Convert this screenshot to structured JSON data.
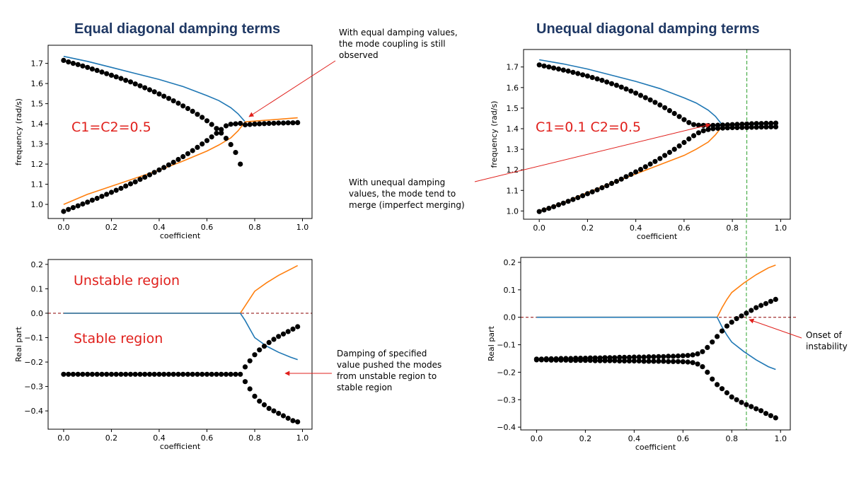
{
  "titles": {
    "left": "Equal diagonal damping terms",
    "right": "Unequal diagonal damping terms"
  },
  "annotations": {
    "equal_coupling": "With equal damping values, the mode coupling is still observed",
    "unequal_merge": "With unequal damping values, the mode tend to merge (imperfect merging)",
    "pushed": "Damping of specified value pushed the modes from unstable region to stable region",
    "onset": "Onset of instability",
    "c_equal": "C1=C2=0.5",
    "c_unequal": "C1=0.1  C2=0.5",
    "unstable": "Unstable region",
    "stable": "Stable region"
  },
  "colors": {
    "blue": "#1f77b4",
    "orange": "#ff7f0e",
    "dots": "#000000",
    "zero_line": "#8b0000",
    "onset_line": "#2ca02c",
    "arrow": "#e0201c"
  },
  "chart_data": [
    {
      "id": "freq_equal",
      "type": "line",
      "xlabel": "coefficient",
      "ylabel": "frequency (rad/s)",
      "xlim": [
        -0.065,
        1.04
      ],
      "ylim": [
        0.93,
        1.79
      ],
      "xticks": [
        "0.0",
        "0.2",
        "0.4",
        "0.6",
        "0.8",
        "1.0"
      ],
      "xtick_values": [
        0,
        0.2,
        0.4,
        0.6,
        0.8,
        1.0
      ],
      "yticks": [
        "1.0",
        "1.1",
        "1.2",
        "1.3",
        "1.4",
        "1.5",
        "1.6",
        "1.7"
      ],
      "ytick_values": [
        1.0,
        1.1,
        1.2,
        1.3,
        1.4,
        1.5,
        1.6,
        1.7
      ],
      "series": [
        {
          "color": "blue",
          "x": [
            0,
            0.1,
            0.2,
            0.3,
            0.4,
            0.5,
            0.6,
            0.65,
            0.7,
            0.73,
            0.76
          ],
          "y": [
            1.735,
            1.71,
            1.68,
            1.65,
            1.62,
            1.585,
            1.54,
            1.515,
            1.48,
            1.45,
            1.41
          ]
        },
        {
          "color": "orange",
          "x": [
            0,
            0.1,
            0.2,
            0.3,
            0.4,
            0.5,
            0.6,
            0.65,
            0.7,
            0.73,
            0.76,
            0.98
          ],
          "y": [
            1.0,
            1.05,
            1.09,
            1.13,
            1.17,
            1.215,
            1.265,
            1.295,
            1.33,
            1.365,
            1.41,
            1.43
          ]
        }
      ],
      "scatter": {
        "upper_x": [
          0,
          0.02,
          0.04,
          0.06,
          0.08,
          0.1,
          0.12,
          0.14,
          0.16,
          0.18,
          0.2,
          0.22,
          0.24,
          0.26,
          0.28,
          0.3,
          0.32,
          0.34,
          0.36,
          0.38,
          0.4,
          0.42,
          0.44,
          0.46,
          0.48,
          0.5,
          0.52,
          0.54,
          0.56,
          0.58,
          0.6,
          0.62,
          0.64,
          0.66,
          0.68,
          0.7,
          0.72,
          0.74
        ],
        "upper_y": [
          1.715,
          1.707,
          1.7,
          1.694,
          1.687,
          1.68,
          1.672,
          1.665,
          1.657,
          1.649,
          1.641,
          1.633,
          1.625,
          1.616,
          1.608,
          1.598,
          1.589,
          1.579,
          1.569,
          1.559,
          1.548,
          1.537,
          1.526,
          1.514,
          1.502,
          1.489,
          1.476,
          1.462,
          1.447,
          1.432,
          1.415,
          1.397,
          1.377,
          1.354,
          1.328,
          1.297,
          1.258,
          1.2
        ],
        "lower_x": [
          0,
          0.02,
          0.04,
          0.06,
          0.08,
          0.1,
          0.12,
          0.14,
          0.16,
          0.18,
          0.2,
          0.22,
          0.24,
          0.26,
          0.28,
          0.3,
          0.32,
          0.34,
          0.36,
          0.38,
          0.4,
          0.42,
          0.44,
          0.46,
          0.48,
          0.5,
          0.52,
          0.54,
          0.56,
          0.58,
          0.6,
          0.62,
          0.64,
          0.66,
          0.68,
          0.7,
          0.72,
          0.74,
          0.76,
          0.78,
          0.8,
          0.82,
          0.84,
          0.86,
          0.88,
          0.9,
          0.92,
          0.94,
          0.96,
          0.98
        ],
        "lower_y": [
          0.965,
          0.975,
          0.984,
          0.993,
          1.002,
          1.011,
          1.021,
          1.03,
          1.04,
          1.05,
          1.06,
          1.07,
          1.08,
          1.091,
          1.102,
          1.112,
          1.124,
          1.135,
          1.147,
          1.159,
          1.171,
          1.183,
          1.196,
          1.209,
          1.223,
          1.237,
          1.252,
          1.267,
          1.283,
          1.3,
          1.317,
          1.335,
          1.353,
          1.372,
          1.39,
          1.398,
          1.4,
          1.402,
          1.395,
          1.397,
          1.399,
          1.4,
          1.401,
          1.402,
          1.403,
          1.404,
          1.404,
          1.405,
          1.405,
          1.406
        ]
      }
    },
    {
      "id": "real_equal",
      "type": "line",
      "xlabel": "coefficient",
      "ylabel": "Real part",
      "xlim": [
        -0.065,
        1.04
      ],
      "ylim": [
        -0.475,
        0.22
      ],
      "xticks": [
        "0.0",
        "0.2",
        "0.4",
        "0.6",
        "0.8",
        "1.0"
      ],
      "xtick_values": [
        0,
        0.2,
        0.4,
        0.6,
        0.8,
        1.0
      ],
      "yticks": [
        "0.2",
        "0.1",
        "0.0",
        "−0.1",
        "−0.2",
        "−0.3",
        "−0.4"
      ],
      "ytick_values": [
        0.2,
        0.1,
        0.0,
        -0.1,
        -0.2,
        -0.3,
        -0.4
      ],
      "zero_line": 0.0,
      "series": [
        {
          "color": "orange",
          "x": [
            0,
            0.74,
            0.76,
            0.78,
            0.8,
            0.85,
            0.9,
            0.95,
            0.98
          ],
          "y": [
            0,
            0,
            0.03,
            0.06,
            0.09,
            0.125,
            0.155,
            0.18,
            0.195
          ]
        },
        {
          "color": "blue",
          "x": [
            0,
            0.74,
            0.76,
            0.78,
            0.8,
            0.85,
            0.9,
            0.95,
            0.98
          ],
          "y": [
            0,
            0,
            -0.03,
            -0.065,
            -0.1,
            -0.135,
            -0.16,
            -0.18,
            -0.19
          ]
        }
      ],
      "scatter": {
        "x": [
          0,
          0.02,
          0.04,
          0.06,
          0.08,
          0.1,
          0.12,
          0.14,
          0.16,
          0.18,
          0.2,
          0.22,
          0.24,
          0.26,
          0.28,
          0.3,
          0.32,
          0.34,
          0.36,
          0.38,
          0.4,
          0.42,
          0.44,
          0.46,
          0.48,
          0.5,
          0.52,
          0.54,
          0.56,
          0.58,
          0.6,
          0.62,
          0.64,
          0.66,
          0.68,
          0.7,
          0.72,
          0.74
        ],
        "y": -0.25,
        "upper_x": [
          0.76,
          0.78,
          0.8,
          0.82,
          0.84,
          0.86,
          0.88,
          0.9,
          0.92,
          0.94,
          0.96,
          0.98
        ],
        "upper_y": [
          -0.22,
          -0.195,
          -0.17,
          -0.15,
          -0.135,
          -0.12,
          -0.107,
          -0.095,
          -0.085,
          -0.075,
          -0.065,
          -0.055
        ],
        "lower_x": [
          0.76,
          0.78,
          0.8,
          0.82,
          0.84,
          0.86,
          0.88,
          0.9,
          0.92,
          0.94,
          0.96,
          0.98
        ],
        "lower_y": [
          -0.28,
          -0.31,
          -0.34,
          -0.36,
          -0.375,
          -0.39,
          -0.4,
          -0.41,
          -0.42,
          -0.43,
          -0.44,
          -0.445
        ]
      }
    },
    {
      "id": "freq_unequal",
      "type": "line",
      "xlabel": "coefficient",
      "ylabel": "frequency (rad/s)",
      "xlim": [
        -0.065,
        1.04
      ],
      "ylim": [
        0.96,
        1.785
      ],
      "xticks": [
        "0.0",
        "0.2",
        "0.4",
        "0.6",
        "0.8",
        "1.0"
      ],
      "xtick_values": [
        0,
        0.2,
        0.4,
        0.6,
        0.8,
        1.0
      ],
      "yticks": [
        "1.0",
        "1.1",
        "1.2",
        "1.3",
        "1.4",
        "1.5",
        "1.6",
        "1.7"
      ],
      "ytick_values": [
        1.0,
        1.1,
        1.2,
        1.3,
        1.4,
        1.5,
        1.6,
        1.7
      ],
      "onset_x": 0.86,
      "series": [
        {
          "color": "blue",
          "x": [
            0,
            0.1,
            0.2,
            0.3,
            0.4,
            0.5,
            0.6,
            0.65,
            0.7,
            0.73,
            0.76,
            0.98
          ],
          "y": [
            1.735,
            1.715,
            1.69,
            1.66,
            1.63,
            1.595,
            1.55,
            1.525,
            1.49,
            1.46,
            1.415,
            1.425
          ]
        },
        {
          "color": "orange",
          "x": [
            0,
            0.1,
            0.2,
            0.3,
            0.4,
            0.5,
            0.6,
            0.65,
            0.7,
            0.73,
            0.76,
            0.98
          ],
          "y": [
            1.0,
            1.04,
            1.09,
            1.135,
            1.18,
            1.225,
            1.27,
            1.3,
            1.335,
            1.37,
            1.415,
            1.43
          ]
        }
      ],
      "scatter": {
        "upper_x": [
          0,
          0.02,
          0.04,
          0.06,
          0.08,
          0.1,
          0.12,
          0.14,
          0.16,
          0.18,
          0.2,
          0.22,
          0.24,
          0.26,
          0.28,
          0.3,
          0.32,
          0.34,
          0.36,
          0.38,
          0.4,
          0.42,
          0.44,
          0.46,
          0.48,
          0.5,
          0.52,
          0.54,
          0.56,
          0.58,
          0.6,
          0.62,
          0.64,
          0.66,
          0.68,
          0.7,
          0.72,
          0.74,
          0.76,
          0.78,
          0.8,
          0.82,
          0.84,
          0.86,
          0.88,
          0.9,
          0.92,
          0.94,
          0.96,
          0.98
        ],
        "upper_y": [
          1.71,
          1.705,
          1.7,
          1.695,
          1.69,
          1.685,
          1.68,
          1.674,
          1.668,
          1.662,
          1.656,
          1.649,
          1.642,
          1.635,
          1.627,
          1.619,
          1.611,
          1.602,
          1.593,
          1.583,
          1.573,
          1.562,
          1.551,
          1.54,
          1.528,
          1.515,
          1.502,
          1.488,
          1.474,
          1.459,
          1.444,
          1.43,
          1.42,
          1.417,
          1.416,
          1.415,
          1.416,
          1.417,
          1.418,
          1.419,
          1.42,
          1.421,
          1.422,
          1.423,
          1.424,
          1.425,
          1.425,
          1.426,
          1.426,
          1.427
        ],
        "lower_x": [
          0,
          0.02,
          0.04,
          0.06,
          0.08,
          0.1,
          0.12,
          0.14,
          0.16,
          0.18,
          0.2,
          0.22,
          0.24,
          0.26,
          0.28,
          0.3,
          0.32,
          0.34,
          0.36,
          0.38,
          0.4,
          0.42,
          0.44,
          0.46,
          0.48,
          0.5,
          0.52,
          0.54,
          0.56,
          0.58,
          0.6,
          0.62,
          0.64,
          0.66,
          0.68,
          0.7,
          0.72,
          0.74,
          0.76,
          0.78,
          0.8,
          0.82,
          0.84,
          0.86,
          0.88,
          0.9,
          0.92,
          0.94,
          0.96,
          0.98
        ],
        "lower_y": [
          0.997,
          1.005,
          1.013,
          1.021,
          1.03,
          1.038,
          1.047,
          1.056,
          1.065,
          1.074,
          1.084,
          1.093,
          1.103,
          1.113,
          1.123,
          1.134,
          1.144,
          1.155,
          1.167,
          1.178,
          1.19,
          1.202,
          1.215,
          1.228,
          1.241,
          1.255,
          1.27,
          1.285,
          1.3,
          1.316,
          1.333,
          1.35,
          1.366,
          1.38,
          1.39,
          1.396,
          1.4,
          1.402,
          1.403,
          1.404,
          1.405,
          1.405,
          1.406,
          1.406,
          1.407,
          1.407,
          1.408,
          1.408,
          1.409,
          1.409
        ]
      }
    },
    {
      "id": "real_unequal",
      "type": "line",
      "xlabel": "coefficient",
      "ylabel": "Real part",
      "xlim": [
        -0.065,
        1.04
      ],
      "ylim": [
        -0.41,
        0.218
      ],
      "xticks": [
        "0.0",
        "0.2",
        "0.4",
        "0.6",
        "0.8",
        "1.0"
      ],
      "xtick_values": [
        0,
        0.2,
        0.4,
        0.6,
        0.8,
        1.0
      ],
      "yticks": [
        "0.2",
        "0.1",
        "0.0",
        "−0.1",
        "−0.2",
        "−0.3",
        "−0.4"
      ],
      "ytick_values": [
        0.2,
        0.1,
        0.0,
        -0.1,
        -0.2,
        -0.3,
        -0.4
      ],
      "zero_line": 0.0,
      "onset_x": 0.86,
      "series": [
        {
          "color": "orange",
          "x": [
            0,
            0.74,
            0.76,
            0.78,
            0.8,
            0.85,
            0.9,
            0.95,
            0.98
          ],
          "y": [
            0,
            0,
            0.035,
            0.065,
            0.09,
            0.125,
            0.155,
            0.18,
            0.19
          ]
        },
        {
          "color": "blue",
          "x": [
            0,
            0.74,
            0.76,
            0.78,
            0.8,
            0.85,
            0.9,
            0.95,
            0.98
          ],
          "y": [
            0,
            0,
            -0.035,
            -0.065,
            -0.09,
            -0.125,
            -0.155,
            -0.18,
            -0.19
          ]
        }
      ],
      "scatter": {
        "upper_x": [
          0,
          0.02,
          0.04,
          0.06,
          0.08,
          0.1,
          0.12,
          0.14,
          0.16,
          0.18,
          0.2,
          0.22,
          0.24,
          0.26,
          0.28,
          0.3,
          0.32,
          0.34,
          0.36,
          0.38,
          0.4,
          0.42,
          0.44,
          0.46,
          0.48,
          0.5,
          0.52,
          0.54,
          0.56,
          0.58,
          0.6,
          0.62,
          0.64,
          0.66,
          0.68,
          0.7,
          0.72,
          0.74,
          0.76,
          0.78,
          0.8,
          0.82,
          0.84,
          0.86,
          0.88,
          0.9,
          0.92,
          0.94,
          0.96,
          0.98
        ],
        "upper_y": [
          -0.152,
          -0.152,
          -0.151,
          -0.151,
          -0.151,
          -0.15,
          -0.15,
          -0.15,
          -0.149,
          -0.149,
          -0.149,
          -0.148,
          -0.148,
          -0.148,
          -0.147,
          -0.147,
          -0.147,
          -0.146,
          -0.146,
          -0.146,
          -0.145,
          -0.145,
          -0.145,
          -0.144,
          -0.144,
          -0.143,
          -0.143,
          -0.142,
          -0.142,
          -0.141,
          -0.14,
          -0.139,
          -0.137,
          -0.133,
          -0.125,
          -0.11,
          -0.09,
          -0.07,
          -0.05,
          -0.032,
          -0.018,
          -0.005,
          0.005,
          0.015,
          0.025,
          0.035,
          0.043,
          0.05,
          0.058,
          0.065
        ],
        "lower_x": [
          0,
          0.02,
          0.04,
          0.06,
          0.08,
          0.1,
          0.12,
          0.14,
          0.16,
          0.18,
          0.2,
          0.22,
          0.24,
          0.26,
          0.28,
          0.3,
          0.32,
          0.34,
          0.36,
          0.38,
          0.4,
          0.42,
          0.44,
          0.46,
          0.48,
          0.5,
          0.52,
          0.54,
          0.56,
          0.58,
          0.6,
          0.62,
          0.64,
          0.66,
          0.68,
          0.7,
          0.72,
          0.74,
          0.76,
          0.78,
          0.8,
          0.82,
          0.84,
          0.86,
          0.88,
          0.9,
          0.92,
          0.94,
          0.96,
          0.98
        ],
        "lower_y": [
          -0.155,
          -0.155,
          -0.155,
          -0.156,
          -0.156,
          -0.156,
          -0.156,
          -0.157,
          -0.157,
          -0.157,
          -0.157,
          -0.157,
          -0.158,
          -0.158,
          -0.158,
          -0.158,
          -0.158,
          -0.159,
          -0.159,
          -0.159,
          -0.159,
          -0.159,
          -0.16,
          -0.16,
          -0.16,
          -0.16,
          -0.16,
          -0.161,
          -0.161,
          -0.161,
          -0.162,
          -0.163,
          -0.165,
          -0.17,
          -0.18,
          -0.2,
          -0.225,
          -0.245,
          -0.26,
          -0.275,
          -0.29,
          -0.3,
          -0.31,
          -0.318,
          -0.325,
          -0.333,
          -0.34,
          -0.35,
          -0.358,
          -0.366
        ]
      }
    }
  ]
}
